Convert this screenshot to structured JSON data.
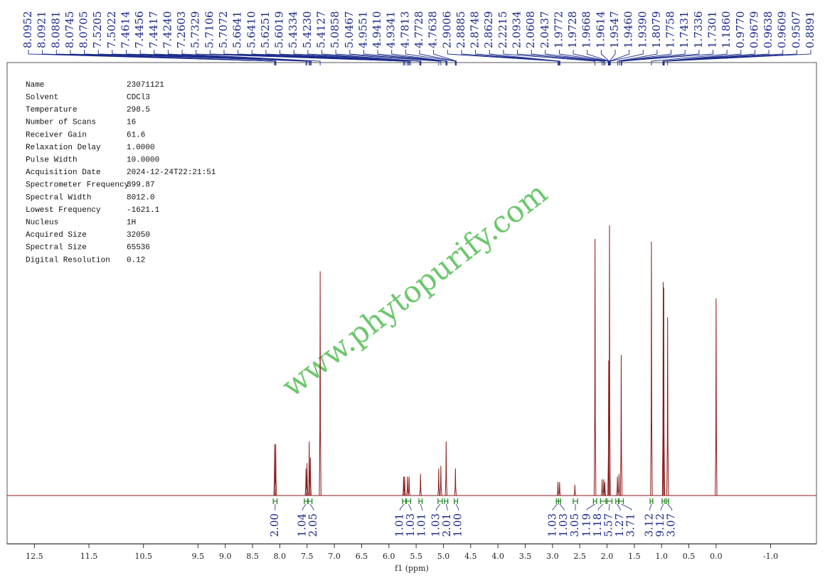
{
  "chart_data": {
    "type": "spectrum",
    "x_label": "f1 (ppm)",
    "watermark": "www.phytopurify.com",
    "xlim": [
      13.0,
      -1.84
    ],
    "ylim": [
      0,
      100
    ],
    "xticks": [
      12.5,
      11.5,
      10.5,
      9.5,
      {
        "value": 9.0,
        "label": "9.0"
      },
      8.5,
      {
        "value": 8.0,
        "label": "8.0"
      },
      7.5,
      {
        "value": 7.0,
        "label": "7.0"
      },
      6.5,
      {
        "value": 6.0,
        "label": "6.0"
      },
      5.5,
      {
        "value": 5.0,
        "label": "5.0"
      },
      4.5,
      {
        "value": 4.0,
        "label": "4.0"
      },
      3.5,
      {
        "value": 3.0,
        "label": "3.0"
      },
      2.5,
      {
        "value": 2.0,
        "label": "2.0"
      },
      1.5,
      {
        "value": 1.0,
        "label": "1.0"
      },
      0.5,
      {
        "value": 0.0,
        "label": "0.0"
      },
      {
        "value": -1.0,
        "label": "-1.0"
      }
    ],
    "color": "#8b1a1a",
    "peaks": {
      "x": [
        8.095,
        8.075,
        7.52,
        7.5,
        7.46,
        7.44,
        7.26,
        5.73,
        5.71,
        5.66,
        5.63,
        5.42,
        5.086,
        5.047,
        4.95,
        4.78,
        2.9,
        2.87,
        2.59,
        2.22,
        2.09,
        2.06,
        2.04,
        1.97,
        1.955,
        1.81,
        1.78,
        1.74,
        1.186,
        0.97,
        0.96,
        0.889,
        0.0
      ],
      "values": [
        19,
        19,
        10,
        12,
        20,
        14,
        83,
        7,
        7,
        7,
        7,
        8,
        10,
        11,
        20,
        10,
        5,
        5,
        4,
        95,
        6,
        6,
        5,
        50,
        100,
        7,
        8,
        52,
        94,
        79,
        77,
        66,
        73
      ]
    },
    "peak_picks": [
      8.0952,
      8.0921,
      8.0881,
      8.0745,
      8.0705,
      7.5205,
      7.5022,
      7.4614,
      7.4456,
      7.4417,
      7.424,
      7.2603,
      5.7329,
      5.7106,
      5.7072,
      5.6641,
      5.641,
      5.6251,
      5.6019,
      5.4334,
      5.423,
      5.4127,
      5.0858,
      5.0467,
      4.9551,
      4.941,
      4.9341,
      4.7813,
      4.7728,
      4.7638,
      2.9006,
      2.8885,
      2.8748,
      2.8629,
      2.2215,
      2.0934,
      2.0608,
      2.0437,
      1.9772,
      1.9728,
      1.9668,
      1.9614,
      1.9547,
      1.946,
      1.939,
      1.8079,
      1.7758,
      1.7431,
      1.7336,
      1.7301,
      1.186,
      0.977,
      0.9679,
      0.9638,
      0.9609,
      0.9507,
      0.8891
    ],
    "peak_pick_labels": [
      "8.0952",
      "8.0921",
      "8.0881",
      "8.0745",
      "8.0705",
      "7.5205",
      "7.5022",
      "7.4614",
      "7.4456",
      "7.4417",
      "7.4240",
      "7.2603",
      "5.7329",
      "5.7106",
      "5.7072",
      "5.6641",
      "5.6410",
      "5.6251",
      "5.6019",
      "5.4334",
      "5.4230",
      "5.4127",
      "5.0858",
      "5.0467",
      "4.9551",
      "4.9410",
      "4.9341",
      "4.7813",
      "4.7728",
      "4.7638",
      "2.9006",
      "2.8885",
      "2.8748",
      "2.8629",
      "2.2215",
      "2.0934",
      "2.0608",
      "2.0437",
      "1.9772",
      "1.9728",
      "1.9668",
      "1.9614",
      "1.9547",
      "1.9460",
      "1.9390",
      "1.8079",
      "1.7758",
      "1.7431",
      "1.7336",
      "1.7301",
      "1.1860",
      "0.9770",
      "0.9679",
      "0.9638",
      "0.9609",
      "0.9507",
      "0.8891"
    ],
    "integrals": {
      "ranges": [
        [
          8.12,
          8.05
        ],
        [
          7.55,
          7.49
        ],
        [
          7.48,
          7.41
        ],
        [
          5.75,
          5.69
        ],
        [
          5.68,
          5.6
        ],
        [
          5.45,
          5.39
        ],
        [
          5.1,
          5.02
        ],
        [
          4.98,
          4.92
        ],
        [
          4.8,
          4.74
        ],
        [
          2.93,
          2.89
        ],
        [
          2.89,
          2.85
        ],
        [
          2.62,
          2.54
        ],
        [
          2.25,
          2.19
        ],
        [
          2.12,
          2.02
        ],
        [
          2.0,
          1.91
        ],
        [
          1.84,
          1.79
        ],
        [
          1.78,
          1.7
        ],
        [
          1.21,
          1.16
        ],
        [
          0.99,
          0.94
        ],
        [
          0.91,
          0.87
        ]
      ],
      "values": [
        2.0,
        1.04,
        2.05,
        1.01,
        1.03,
        1.01,
        1.03,
        2.01,
        1.0,
        1.03,
        1.03,
        3.05,
        1.19,
        1.18,
        5.57,
        1.27,
        3.71,
        3.12,
        9.12,
        3.07
      ],
      "value_labels": [
        "2.00",
        "1.04",
        "2.05",
        "1.01",
        "1.03",
        "1.01",
        "1.03",
        "2.01",
        "1.00",
        "1.03",
        "1.03",
        "3.05",
        "1.19",
        "1.18",
        "5.57",
        "1.27",
        "3.71",
        "3.12",
        "9.12",
        "3.07"
      ]
    },
    "parameters": [
      [
        "Name",
        "23071121"
      ],
      [
        "Solvent",
        "CDCl3"
      ],
      [
        "Temperature",
        "298.5"
      ],
      [
        "Number of Scans",
        "16"
      ],
      [
        "Receiver Gain",
        "61.6"
      ],
      [
        "Relaxation Delay",
        "1.0000"
      ],
      [
        "Pulse Width",
        "10.0000"
      ],
      [
        "Acquisition Date",
        "2024-12-24T22:21:51"
      ],
      [
        "Spectrometer Frequency",
        "399.87"
      ],
      [
        "Spectral Width",
        "8012.0"
      ],
      [
        "Lowest Frequency",
        "-1621.1"
      ],
      [
        "Nucleus",
        "1H"
      ],
      [
        "Acquired Size",
        "32050"
      ],
      [
        "Spectral Size",
        "65536"
      ],
      [
        "Digital Resolution",
        "0.12"
      ]
    ]
  }
}
